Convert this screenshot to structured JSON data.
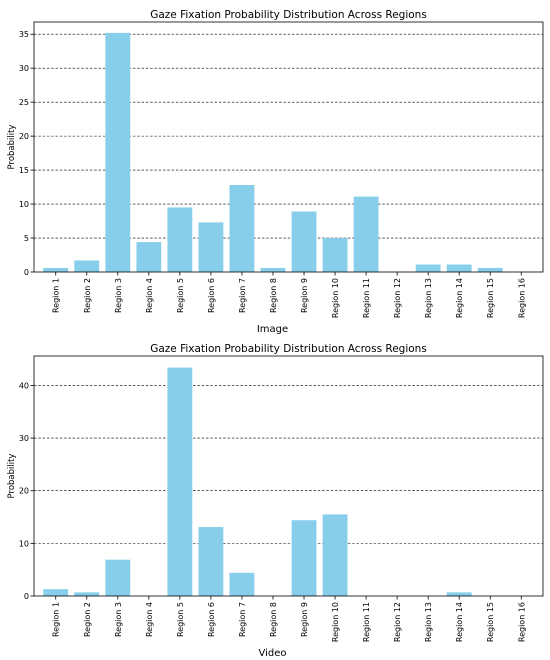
{
  "chart_data": [
    {
      "type": "bar",
      "title": "Gaze Fixation Probability Distribution Across Regions",
      "xlabel": "Image",
      "ylabel": "Probability",
      "categories": [
        "Region 1",
        "Region 2",
        "Region 3",
        "Region 4",
        "Region 5",
        "Region 6",
        "Region 7",
        "Region 8",
        "Region 9",
        "Region 10",
        "Region 11",
        "Region 12",
        "Region 13",
        "Region 14",
        "Region 15",
        "Region 16"
      ],
      "values": [
        0.6,
        1.7,
        35.2,
        4.4,
        9.5,
        7.3,
        12.8,
        0.6,
        8.9,
        5.0,
        11.1,
        0.0,
        1.1,
        1.1,
        0.6,
        0.0
      ],
      "ylim": [
        0,
        36.8
      ],
      "yticks": [
        0,
        5,
        10,
        15,
        20,
        25,
        30,
        35
      ],
      "color": "#87ceeb",
      "grid": "y-dashed",
      "legend": "none"
    },
    {
      "type": "bar",
      "title": "Gaze Fixation Probability Distribution Across Regions",
      "xlabel": "Video",
      "ylabel": "Probability",
      "categories": [
        "Region 1",
        "Region 2",
        "Region 3",
        "Region 4",
        "Region 5",
        "Region 6",
        "Region 7",
        "Region 8",
        "Region 9",
        "Region 10",
        "Region 11",
        "Region 12",
        "Region 13",
        "Region 14",
        "Region 15",
        "Region 16"
      ],
      "values": [
        1.3,
        0.7,
        6.9,
        0.0,
        43.4,
        13.1,
        4.4,
        0.0,
        14.4,
        15.5,
        0.0,
        0.0,
        0.0,
        0.7,
        0.0,
        0.0
      ],
      "ylim": [
        0,
        45.6
      ],
      "yticks": [
        0,
        10,
        20,
        30,
        40
      ],
      "color": "#87ceeb",
      "grid": "y-dashed",
      "legend": "none"
    }
  ]
}
